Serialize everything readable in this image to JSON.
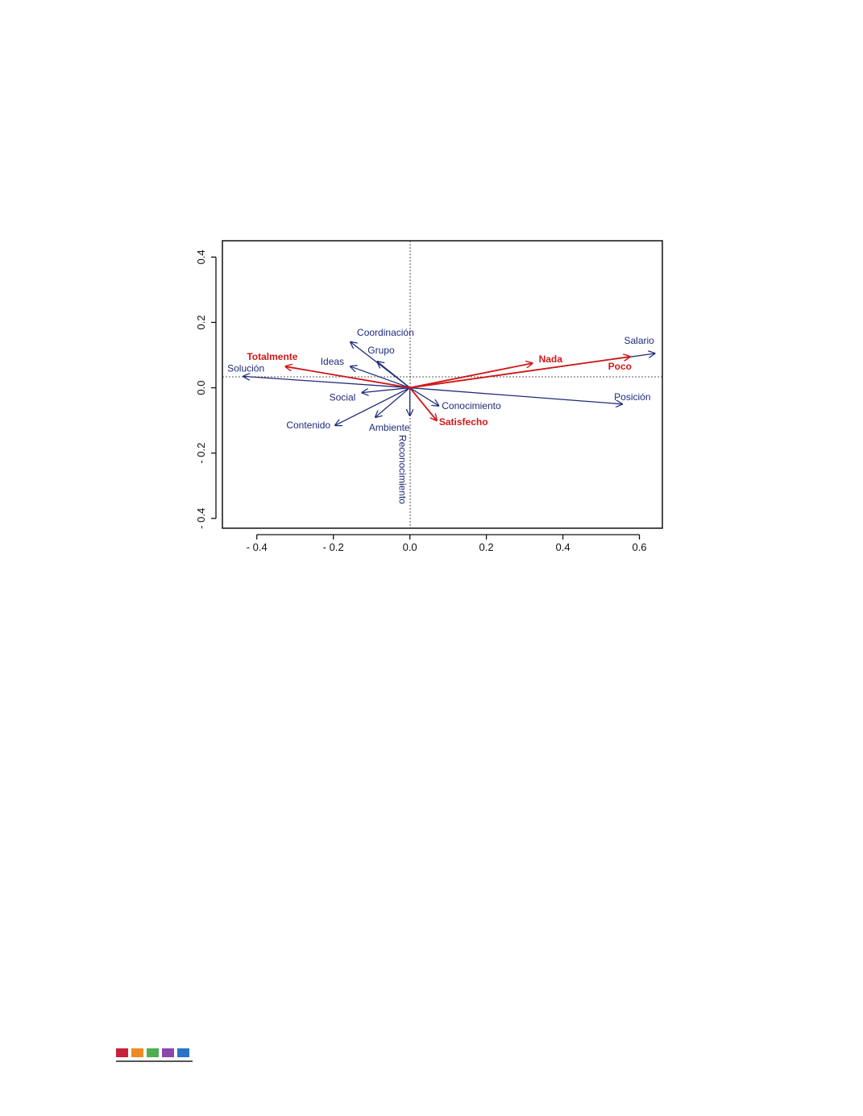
{
  "chart_data": {
    "type": "biplot",
    "title": "",
    "xlabel": "",
    "ylabel": "",
    "xlim": [
      -0.49,
      0.66
    ],
    "ylim": [
      -0.43,
      0.45
    ],
    "x_ticks": [
      -0.4,
      -0.2,
      0.0,
      0.2,
      0.4,
      0.6
    ],
    "x_tick_labels": [
      "- 0.4",
      "- 0.2",
      "0.0",
      "0.2",
      "0.4",
      "0.6"
    ],
    "y_ticks": [
      -0.4,
      -0.2,
      0.0,
      0.2,
      0.4
    ],
    "y_tick_labels": [
      "- 0.4",
      "- 0.2",
      "0.0",
      "0.2",
      "0.4"
    ],
    "reference_lines": "dashed lines at x=0 and y=0",
    "colors": {
      "variables": "#1f2a7a",
      "categories": "#d01818",
      "axis": "#111111"
    },
    "series": [
      {
        "color": "#1f2a7a",
        "arrows": [
          {
            "label": "Coordinación",
            "x": -0.155,
            "y": 0.14
          },
          {
            "label": "Grupo",
            "x": -0.085,
            "y": 0.08
          },
          {
            "label": "Ideas",
            "x": -0.155,
            "y": 0.065
          },
          {
            "label": "Solución",
            "x": -0.435,
            "y": 0.035
          },
          {
            "label": "Social",
            "x": -0.125,
            "y": -0.015
          },
          {
            "label": "Contenido",
            "x": -0.195,
            "y": -0.115
          },
          {
            "label": "Ambiente",
            "x": -0.09,
            "y": -0.09
          },
          {
            "label": "Reconocimiento",
            "x": 0.0,
            "y": -0.085
          },
          {
            "label": "Conocimiento",
            "x": 0.075,
            "y": -0.055
          },
          {
            "label": "Salario",
            "x": 0.64,
            "y": 0.105
          },
          {
            "label": "Posición",
            "x": 0.555,
            "y": -0.05
          }
        ]
      },
      {
        "color": "#d01818",
        "arrows": [
          {
            "label": "Totalmente",
            "x": -0.325,
            "y": 0.065
          },
          {
            "label": "Nada",
            "x": 0.32,
            "y": 0.075
          },
          {
            "label": "Poco",
            "x": 0.575,
            "y": 0.095
          },
          {
            "label": "Satisfecho",
            "x": 0.07,
            "y": -0.1
          }
        ]
      }
    ]
  },
  "footer": {
    "color_squares": [
      "#c8213a",
      "#ef8a22",
      "#4caf50",
      "#8e44ad",
      "#2b73c6"
    ]
  }
}
